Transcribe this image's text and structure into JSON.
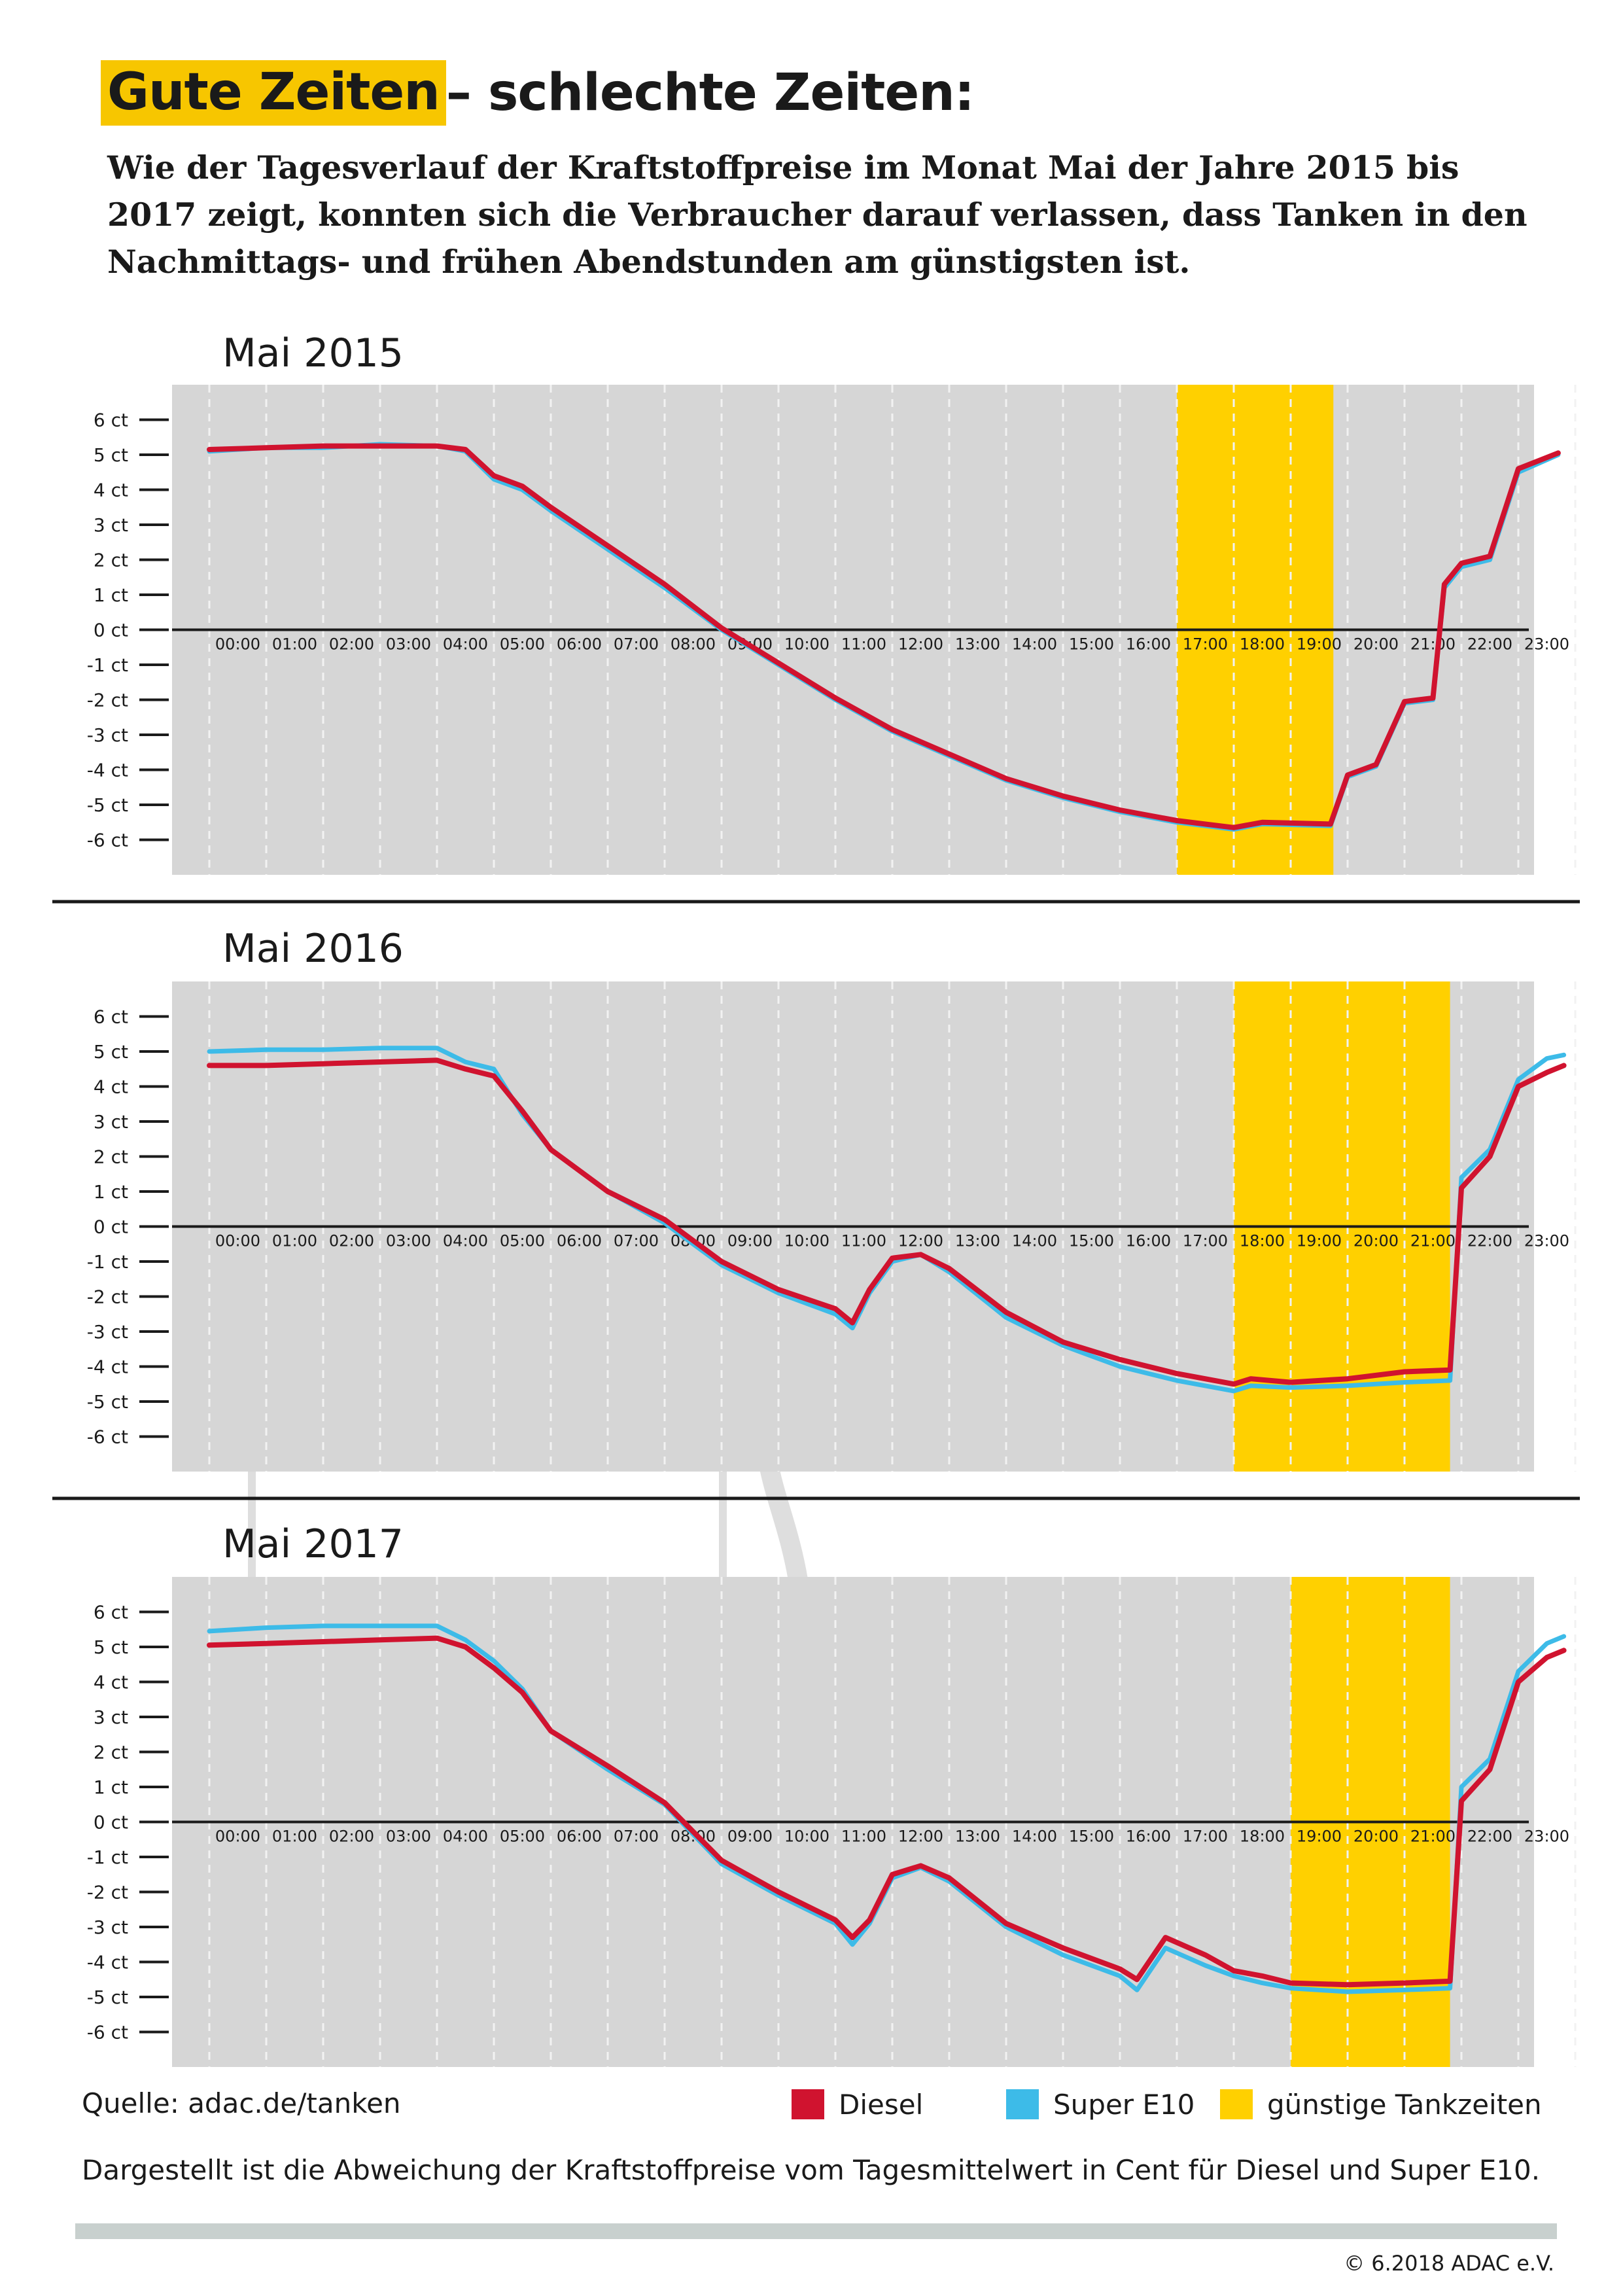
{
  "title": {
    "highlight": "Gute Zeiten",
    "rest": " – schlechte Zeiten:"
  },
  "subtitle": "Wie der Tagesverlauf der Kraftstoffpreise im Monat Mai der Jahre 2015 bis 2017 zeigt, konnten sich die Verbraucher darauf verlassen, dass Tanken in den Nachmittags- und frühen Abendstunden am günstigsten ist.",
  "colors": {
    "diesel": "#d0132f",
    "super": "#3dbbe8",
    "highlight": "#ffd000",
    "panel": "#d6d6d6"
  },
  "legend": {
    "diesel": "Diesel",
    "super": "Super E10",
    "good": "günstige Tankzeiten"
  },
  "source": "Quelle: adac.de/tanken",
  "note": "Dargestellt ist die Abweichung der Kraftstoffpreise vom Tagesmittelwert in Cent für Diesel und Super E10.",
  "copyright": "© 6.2018  ADAC e.V.",
  "chart_data": [
    {
      "type": "line",
      "title": "Mai 2015",
      "ylim": [
        -7,
        7
      ],
      "yticks": [
        6,
        5,
        4,
        3,
        2,
        1,
        0,
        -1,
        -2,
        -3,
        -4,
        -5,
        -6
      ],
      "ytick_labels": [
        "6 ct",
        "5 ct",
        "4 ct",
        "3 ct",
        "2 ct",
        "1 ct",
        "0 ct",
        "-1 ct",
        "-2 ct",
        "-3 ct",
        "-4 ct",
        "-5 ct",
        "-6 ct"
      ],
      "x_labels": [
        "00:00",
        "01:00",
        "02:00",
        "03:00",
        "04:00",
        "05:00",
        "06:00",
        "07:00",
        "08:00",
        "09:00",
        "10:00",
        "11:00",
        "12:00",
        "13:00",
        "14:00",
        "15:00",
        "16:00",
        "17:00",
        "18:00",
        "19:00",
        "20:00",
        "21:00",
        "22:00",
        "23:00"
      ],
      "highlight_hours": [
        17,
        19.75
      ],
      "series": [
        {
          "name": "Super E10",
          "color_key": "super",
          "points": [
            [
              0,
              5.1
            ],
            [
              1,
              5.2
            ],
            [
              2,
              5.2
            ],
            [
              3,
              5.3
            ],
            [
              4,
              5.25
            ],
            [
              4.5,
              5.1
            ],
            [
              5,
              4.3
            ],
            [
              5.5,
              4.0
            ],
            [
              6,
              3.4
            ],
            [
              7,
              2.3
            ],
            [
              8,
              1.2
            ],
            [
              9,
              0.0
            ],
            [
              10,
              -1.0
            ],
            [
              11,
              -2.0
            ],
            [
              12,
              -2.9
            ],
            [
              13,
              -3.6
            ],
            [
              14,
              -4.3
            ],
            [
              15,
              -4.8
            ],
            [
              16,
              -5.2
            ],
            [
              17,
              -5.5
            ],
            [
              18,
              -5.7
            ],
            [
              18.5,
              -5.55
            ],
            [
              19.7,
              -5.6
            ],
            [
              20,
              -4.2
            ],
            [
              20.5,
              -3.9
            ],
            [
              21,
              -2.1
            ],
            [
              21.5,
              -2.0
            ],
            [
              21.7,
              1.2
            ],
            [
              22,
              1.8
            ],
            [
              22.5,
              2.0
            ],
            [
              23,
              4.5
            ],
            [
              23.7,
              5.0
            ]
          ]
        },
        {
          "name": "Diesel",
          "color_key": "diesel",
          "points": [
            [
              0,
              5.15
            ],
            [
              1,
              5.2
            ],
            [
              2,
              5.25
            ],
            [
              3,
              5.25
            ],
            [
              4,
              5.25
            ],
            [
              4.5,
              5.15
            ],
            [
              5,
              4.4
            ],
            [
              5.5,
              4.1
            ],
            [
              6,
              3.5
            ],
            [
              7,
              2.4
            ],
            [
              8,
              1.3
            ],
            [
              9,
              0.05
            ],
            [
              10,
              -0.95
            ],
            [
              11,
              -1.95
            ],
            [
              12,
              -2.85
            ],
            [
              13,
              -3.55
            ],
            [
              14,
              -4.25
            ],
            [
              15,
              -4.75
            ],
            [
              16,
              -5.15
            ],
            [
              17,
              -5.45
            ],
            [
              18,
              -5.65
            ],
            [
              18.5,
              -5.5
            ],
            [
              19.7,
              -5.55
            ],
            [
              20,
              -4.15
            ],
            [
              20.5,
              -3.85
            ],
            [
              21,
              -2.05
            ],
            [
              21.5,
              -1.95
            ],
            [
              21.7,
              1.3
            ],
            [
              22,
              1.9
            ],
            [
              22.5,
              2.1
            ],
            [
              23,
              4.6
            ],
            [
              23.7,
              5.05
            ]
          ]
        }
      ]
    },
    {
      "type": "line",
      "title": "Mai 2016",
      "ylim": [
        -7,
        7
      ],
      "yticks": [
        6,
        5,
        4,
        3,
        2,
        1,
        0,
        -1,
        -2,
        -3,
        -4,
        -5,
        -6
      ],
      "ytick_labels": [
        "6 ct",
        "5 ct",
        "4 ct",
        "3 ct",
        "2 ct",
        "1 ct",
        "0 ct",
        "-1 ct",
        "-2 ct",
        "-3 ct",
        "-4 ct",
        "-5 ct",
        "-6 ct"
      ],
      "x_labels": [
        "00:00",
        "01:00",
        "02:00",
        "03:00",
        "04:00",
        "05:00",
        "06:00",
        "07:00",
        "08:00",
        "09:00",
        "10:00",
        "11:00",
        "12:00",
        "13:00",
        "14:00",
        "15:00",
        "16:00",
        "17:00",
        "18:00",
        "19:00",
        "20:00",
        "21:00",
        "22:00",
        "23:00"
      ],
      "highlight_hours": [
        18,
        21.8
      ],
      "series": [
        {
          "name": "Super E10",
          "color_key": "super",
          "points": [
            [
              0,
              5.0
            ],
            [
              1,
              5.05
            ],
            [
              2,
              5.05
            ],
            [
              3,
              5.1
            ],
            [
              4,
              5.1
            ],
            [
              4.5,
              4.7
            ],
            [
              5,
              4.5
            ],
            [
              5.5,
              3.2
            ],
            [
              6,
              2.2
            ],
            [
              7,
              1.0
            ],
            [
              8,
              0.1
            ],
            [
              9,
              -1.1
            ],
            [
              10,
              -1.9
            ],
            [
              11,
              -2.5
            ],
            [
              11.3,
              -2.9
            ],
            [
              11.6,
              -1.9
            ],
            [
              12,
              -1.0
            ],
            [
              12.5,
              -0.8
            ],
            [
              13,
              -1.3
            ],
            [
              14,
              -2.6
            ],
            [
              15,
              -3.4
            ],
            [
              16,
              -4.0
            ],
            [
              17,
              -4.4
            ],
            [
              18,
              -4.7
            ],
            [
              18.3,
              -4.55
            ],
            [
              19,
              -4.6
            ],
            [
              20,
              -4.55
            ],
            [
              21,
              -4.45
            ],
            [
              21.8,
              -4.4
            ],
            [
              22,
              1.4
            ],
            [
              22.5,
              2.2
            ],
            [
              23,
              4.2
            ],
            [
              23.5,
              4.8
            ],
            [
              23.8,
              4.9
            ]
          ]
        },
        {
          "name": "Diesel",
          "color_key": "diesel",
          "points": [
            [
              0,
              4.6
            ],
            [
              1,
              4.6
            ],
            [
              2,
              4.65
            ],
            [
              3,
              4.7
            ],
            [
              4,
              4.75
            ],
            [
              4.5,
              4.5
            ],
            [
              5,
              4.3
            ],
            [
              5.5,
              3.3
            ],
            [
              6,
              2.2
            ],
            [
              7,
              1.0
            ],
            [
              8,
              0.2
            ],
            [
              9,
              -1.0
            ],
            [
              10,
              -1.8
            ],
            [
              11,
              -2.35
            ],
            [
              11.3,
              -2.75
            ],
            [
              11.6,
              -1.8
            ],
            [
              12,
              -0.9
            ],
            [
              12.5,
              -0.8
            ],
            [
              13,
              -1.2
            ],
            [
              14,
              -2.45
            ],
            [
              15,
              -3.3
            ],
            [
              16,
              -3.8
            ],
            [
              17,
              -4.2
            ],
            [
              18,
              -4.5
            ],
            [
              18.3,
              -4.35
            ],
            [
              19,
              -4.45
            ],
            [
              20,
              -4.35
            ],
            [
              21,
              -4.15
            ],
            [
              21.8,
              -4.1
            ],
            [
              22,
              1.1
            ],
            [
              22.5,
              2.0
            ],
            [
              23,
              4.0
            ],
            [
              23.5,
              4.4
            ],
            [
              23.8,
              4.6
            ]
          ]
        }
      ]
    },
    {
      "type": "line",
      "title": "Mai 2017",
      "ylim": [
        -7,
        7
      ],
      "yticks": [
        6,
        5,
        4,
        3,
        2,
        1,
        0,
        -1,
        -2,
        -3,
        -4,
        -5,
        -6
      ],
      "ytick_labels": [
        "6 ct",
        "5 ct",
        "4 ct",
        "3 ct",
        "2 ct",
        "1 ct",
        "0 ct",
        "-1 ct",
        "-2 ct",
        "-3 ct",
        "-4 ct",
        "-5 ct",
        "-6 ct"
      ],
      "x_labels": [
        "00:00",
        "01:00",
        "02:00",
        "03:00",
        "04:00",
        "05:00",
        "06:00",
        "07:00",
        "08:00",
        "09:00",
        "10:00",
        "11:00",
        "12:00",
        "13:00",
        "14:00",
        "15:00",
        "16:00",
        "17:00",
        "18:00",
        "19:00",
        "20:00",
        "21:00",
        "22:00",
        "23:00"
      ],
      "highlight_hours": [
        19,
        21.8
      ],
      "series": [
        {
          "name": "Super E10",
          "color_key": "super",
          "points": [
            [
              0,
              5.45
            ],
            [
              1,
              5.55
            ],
            [
              2,
              5.6
            ],
            [
              3,
              5.6
            ],
            [
              4,
              5.6
            ],
            [
              4.5,
              5.2
            ],
            [
              5,
              4.6
            ],
            [
              5.5,
              3.8
            ],
            [
              6,
              2.6
            ],
            [
              7,
              1.5
            ],
            [
              8,
              0.5
            ],
            [
              9,
              -1.2
            ],
            [
              10,
              -2.1
            ],
            [
              11,
              -2.9
            ],
            [
              11.3,
              -3.5
            ],
            [
              11.6,
              -2.9
            ],
            [
              12,
              -1.6
            ],
            [
              12.5,
              -1.3
            ],
            [
              13,
              -1.7
            ],
            [
              14,
              -3.0
            ],
            [
              15,
              -3.8
            ],
            [
              16,
              -4.4
            ],
            [
              16.3,
              -4.8
            ],
            [
              16.8,
              -3.6
            ],
            [
              17.5,
              -4.1
            ],
            [
              18,
              -4.4
            ],
            [
              18.5,
              -4.6
            ],
            [
              19,
              -4.75
            ],
            [
              20,
              -4.85
            ],
            [
              21,
              -4.8
            ],
            [
              21.8,
              -4.75
            ],
            [
              22,
              1.0
            ],
            [
              22.5,
              1.8
            ],
            [
              23,
              4.3
            ],
            [
              23.5,
              5.1
            ],
            [
              23.8,
              5.3
            ]
          ]
        },
        {
          "name": "Diesel",
          "color_key": "diesel",
          "points": [
            [
              0,
              5.05
            ],
            [
              1,
              5.1
            ],
            [
              2,
              5.15
            ],
            [
              3,
              5.2
            ],
            [
              4,
              5.25
            ],
            [
              4.5,
              5.0
            ],
            [
              5,
              4.4
            ],
            [
              5.5,
              3.7
            ],
            [
              6,
              2.6
            ],
            [
              7,
              1.6
            ],
            [
              8,
              0.55
            ],
            [
              9,
              -1.1
            ],
            [
              10,
              -2.0
            ],
            [
              11,
              -2.8
            ],
            [
              11.3,
              -3.3
            ],
            [
              11.6,
              -2.8
            ],
            [
              12,
              -1.5
            ],
            [
              12.5,
              -1.25
            ],
            [
              13,
              -1.6
            ],
            [
              14,
              -2.9
            ],
            [
              15,
              -3.6
            ],
            [
              16,
              -4.2
            ],
            [
              16.3,
              -4.5
            ],
            [
              16.8,
              -3.3
            ],
            [
              17.5,
              -3.8
            ],
            [
              18,
              -4.25
            ],
            [
              18.5,
              -4.4
            ],
            [
              19,
              -4.6
            ],
            [
              20,
              -4.65
            ],
            [
              21,
              -4.6
            ],
            [
              21.8,
              -4.55
            ],
            [
              22,
              0.6
            ],
            [
              22.5,
              1.5
            ],
            [
              23,
              4.0
            ],
            [
              23.5,
              4.7
            ],
            [
              23.8,
              4.9
            ]
          ]
        }
      ]
    }
  ]
}
